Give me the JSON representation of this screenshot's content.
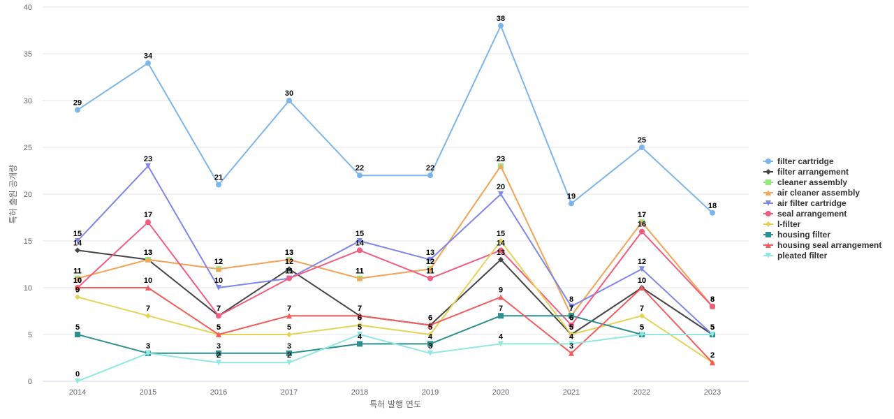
{
  "chart_data": {
    "type": "line",
    "title": "",
    "xlabel": "특허 발행 연도",
    "ylabel": "특허 출원 공개량",
    "ylim": [
      0,
      40
    ],
    "yticks": [
      0,
      5,
      10,
      15,
      20,
      25,
      30,
      35,
      40
    ],
    "grid": true,
    "legend_position": "right",
    "x": [
      "2014",
      "2015",
      "2016",
      "2017",
      "2018",
      "2019",
      "2020",
      "2021",
      "2022",
      "2023"
    ],
    "series": [
      {
        "name": "filter cartridge",
        "color": "#7cb5ec",
        "marker": "circle",
        "values": [
          29,
          34,
          21,
          30,
          22,
          22,
          38,
          19,
          25,
          18
        ]
      },
      {
        "name": "filter arrangement",
        "color": "#434348",
        "marker": "diamond",
        "values": [
          14,
          13,
          7,
          12,
          7,
          6,
          13,
          5,
          10,
          5
        ]
      },
      {
        "name": "cleaner assembly",
        "color": "#90ed7d",
        "marker": "square",
        "values": [
          11,
          13,
          12,
          13,
          11,
          12,
          23,
          7,
          17,
          8
        ]
      },
      {
        "name": "air cleaner assembly",
        "color": "#f7a35c",
        "marker": "triangle",
        "values": [
          11,
          13,
          12,
          13,
          11,
          12,
          23,
          7,
          17,
          8
        ]
      },
      {
        "name": "air filter cartridge",
        "color": "#8085e9",
        "marker": "triangle-down",
        "values": [
          15,
          23,
          10,
          11,
          15,
          13,
          20,
          8,
          12,
          5
        ]
      },
      {
        "name": "seal arrangement",
        "color": "#f15c80",
        "marker": "circle",
        "values": [
          10,
          17,
          7,
          11,
          14,
          11,
          14,
          6,
          16,
          8
        ]
      },
      {
        "name": "l-filter",
        "color": "#e4d354",
        "marker": "diamond",
        "values": [
          9,
          7,
          5,
          5,
          6,
          5,
          15,
          5,
          7,
          2
        ]
      },
      {
        "name": "housing filter",
        "color": "#2b908f",
        "marker": "square",
        "values": [
          5,
          3,
          3,
          3,
          4,
          4,
          7,
          7,
          5,
          5
        ]
      },
      {
        "name": "housing seal arrangement",
        "color": "#f45b5b",
        "marker": "triangle",
        "values": [
          10,
          10,
          5,
          7,
          7,
          6,
          9,
          3,
          10,
          2
        ]
      },
      {
        "name": "pleated filter",
        "color": "#91e8e1",
        "marker": "triangle-down",
        "values": [
          0,
          3,
          2,
          2,
          5,
          3,
          4,
          4,
          5,
          5
        ]
      }
    ]
  }
}
